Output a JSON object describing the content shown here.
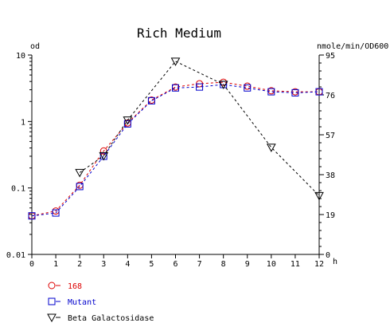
{
  "chart_data": {
    "type": "line",
    "title": "Rich Medium",
    "xlabel": "h",
    "ylabel_left": "od",
    "ylabel_right": "nmole/min/OD600",
    "x_ticks": [
      "0",
      "1",
      "2",
      "3",
      "4",
      "5",
      "6",
      "7",
      "8",
      "9",
      "10",
      "11",
      "12"
    ],
    "xlim": [
      0,
      12
    ],
    "y_left": {
      "scale": "log",
      "lim": [
        0.01,
        10
      ],
      "ticks": [
        "0.01",
        "0.1",
        "1",
        "10"
      ]
    },
    "y_right": {
      "scale": "linear",
      "lim": [
        0,
        95
      ],
      "ticks": [
        "0",
        "19",
        "38",
        "57",
        "76",
        "95"
      ]
    },
    "grid": false,
    "legend_position": "bottom-left",
    "series": [
      {
        "name": "168",
        "axis": "left",
        "marker": "circle",
        "color": "#dd0000",
        "x": [
          0,
          1,
          2,
          3,
          4,
          5,
          6,
          7,
          8,
          9,
          10,
          11,
          12
        ],
        "y": [
          0.038,
          0.045,
          0.11,
          0.36,
          0.95,
          2.1,
          3.3,
          3.7,
          3.9,
          3.4,
          2.9,
          2.8,
          2.8
        ]
      },
      {
        "name": "Mutant",
        "axis": "left",
        "marker": "square",
        "color": "#0000cc",
        "x": [
          0,
          1,
          2,
          3,
          4,
          5,
          6,
          7,
          8,
          9,
          10,
          11,
          12
        ],
        "y": [
          0.038,
          0.042,
          0.105,
          0.3,
          0.92,
          2.05,
          3.2,
          3.3,
          3.6,
          3.2,
          2.8,
          2.7,
          2.8
        ]
      },
      {
        "name": "Beta Galactosidase",
        "axis": "right",
        "marker": "triangle-down",
        "color": "#000000",
        "x": [
          2,
          3,
          4,
          6,
          8,
          10,
          12
        ],
        "y": [
          39,
          47,
          64,
          92,
          81,
          51,
          28
        ]
      }
    ]
  }
}
